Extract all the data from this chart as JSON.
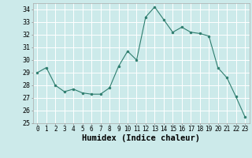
{
  "x": [
    0,
    1,
    2,
    3,
    4,
    5,
    6,
    7,
    8,
    9,
    10,
    11,
    12,
    13,
    14,
    15,
    16,
    17,
    18,
    19,
    20,
    21,
    22,
    23
  ],
  "y": [
    29.0,
    29.4,
    28.0,
    27.5,
    27.7,
    27.4,
    27.3,
    27.3,
    27.8,
    29.5,
    30.7,
    30.0,
    33.4,
    34.2,
    33.2,
    32.2,
    32.6,
    32.2,
    32.1,
    31.9,
    29.4,
    28.6,
    27.1,
    25.5
  ],
  "line_color": "#2e7d6e",
  "marker_color": "#2e7d6e",
  "bg_color": "#cceaea",
  "grid_color": "#ffffff",
  "xlabel": "Humidex (Indice chaleur)",
  "ylim": [
    25,
    34.5
  ],
  "xlim": [
    -0.5,
    23.5
  ],
  "yticks": [
    25,
    26,
    27,
    28,
    29,
    30,
    31,
    32,
    33,
    34
  ],
  "xticks": [
    0,
    1,
    2,
    3,
    4,
    5,
    6,
    7,
    8,
    9,
    10,
    11,
    12,
    13,
    14,
    15,
    16,
    17,
    18,
    19,
    20,
    21,
    22,
    23
  ],
  "tick_label_fontsize": 5.5,
  "xlabel_fontsize": 7.5,
  "ytick_fontsize": 6.0
}
